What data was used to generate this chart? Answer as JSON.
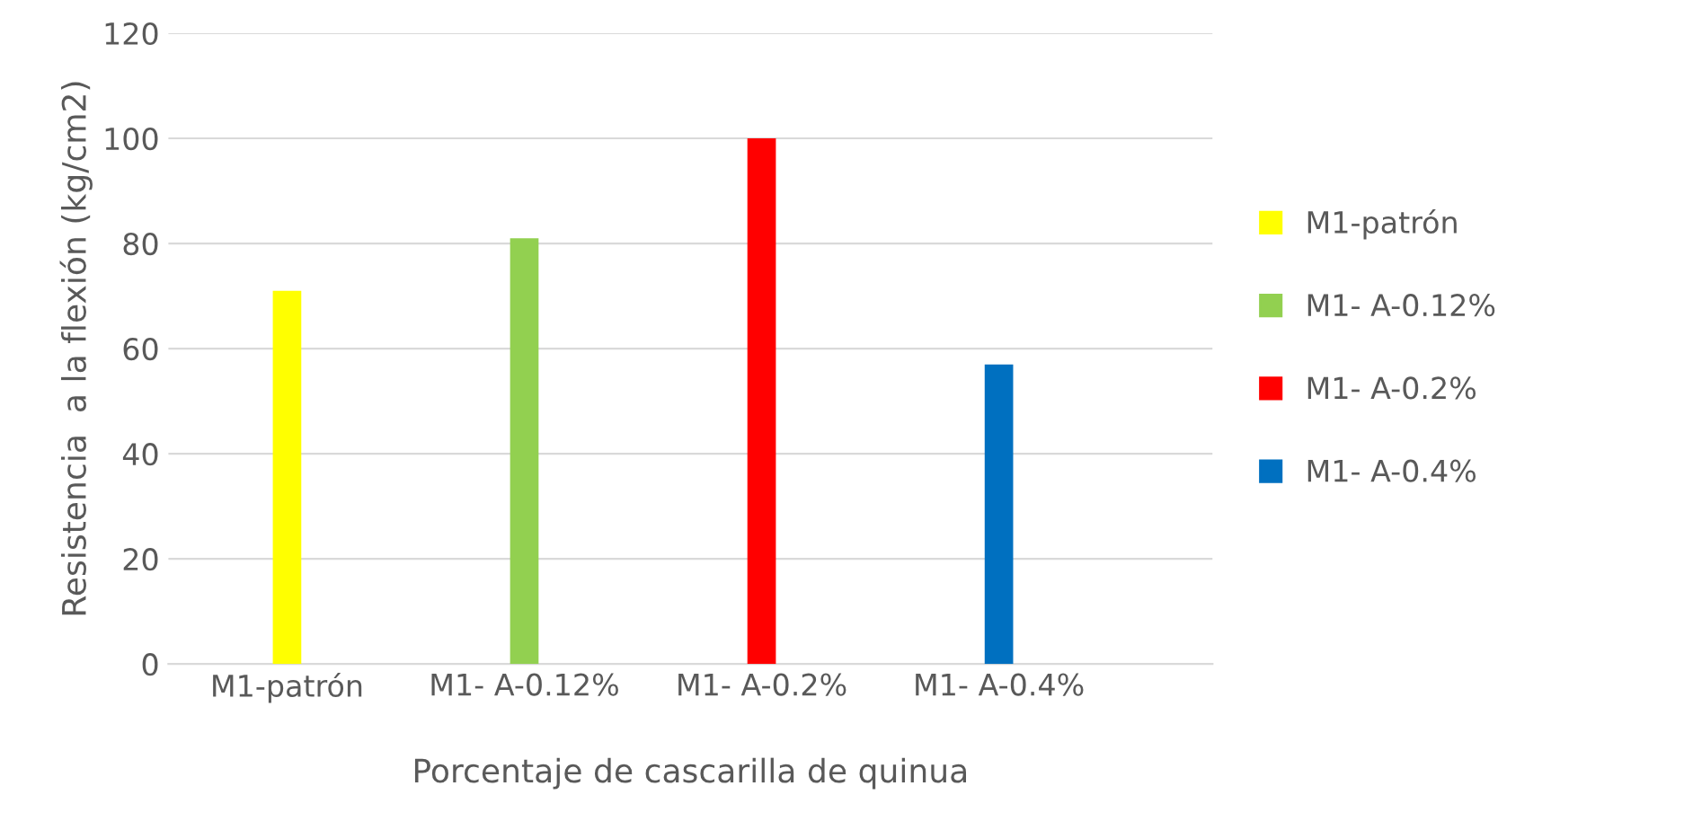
{
  "chart_data": {
    "type": "bar",
    "xlabel": "Porcentaje de cascarilla de quinua",
    "ylabel": "Resistencia  a la flexión (kg/cm2)",
    "categories": [
      "M1-patrón",
      "M1- A-0.12%",
      "M1- A-0.2%",
      "M1- A-0.4%"
    ],
    "series": [
      {
        "name": "M1-patrón",
        "color": "#ffff00",
        "values": [
          71,
          null,
          null,
          null
        ]
      },
      {
        "name": "M1- A-0.12%",
        "color": "#92d050",
        "values": [
          null,
          81,
          null,
          null
        ]
      },
      {
        "name": "M1- A-0.2%",
        "color": "#ff0000",
        "values": [
          null,
          null,
          100,
          null
        ]
      },
      {
        "name": "M1- A-0.4%",
        "color": "#0070c0",
        "values": [
          null,
          null,
          null,
          57
        ]
      }
    ],
    "ylim": [
      0,
      120
    ],
    "yticks": [
      0,
      20,
      40,
      60,
      80,
      100,
      120
    ],
    "grid": "y",
    "legend": "right"
  }
}
